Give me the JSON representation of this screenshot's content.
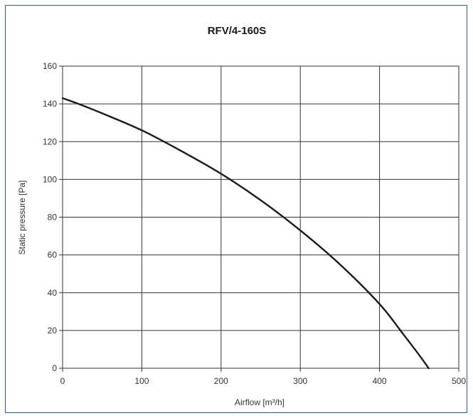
{
  "chart_data": {
    "type": "line",
    "title": "RFV/4-160S",
    "xlabel": "Airflow [m³/h]",
    "ylabel": "Static pressure [Pa]",
    "xlim": [
      0,
      500
    ],
    "ylim": [
      0,
      160
    ],
    "x_ticks": [
      "0",
      "100",
      "200",
      "300",
      "400",
      "500"
    ],
    "y_ticks": [
      "0",
      "20",
      "40",
      "60",
      "80",
      "100",
      "120",
      "140",
      "160"
    ],
    "grid": true,
    "colors": {
      "line": "#1a1a1a",
      "grid": "#333333",
      "frame": "#2f5d8c"
    },
    "series": [
      {
        "x": [
          0,
          20,
          50,
          100,
          150,
          200,
          250,
          300,
          350,
          400,
          430,
          450,
          462
        ],
        "y": [
          143,
          140,
          135,
          126,
          115,
          103,
          89,
          73,
          55,
          34,
          18,
          7,
          0
        ]
      }
    ]
  }
}
